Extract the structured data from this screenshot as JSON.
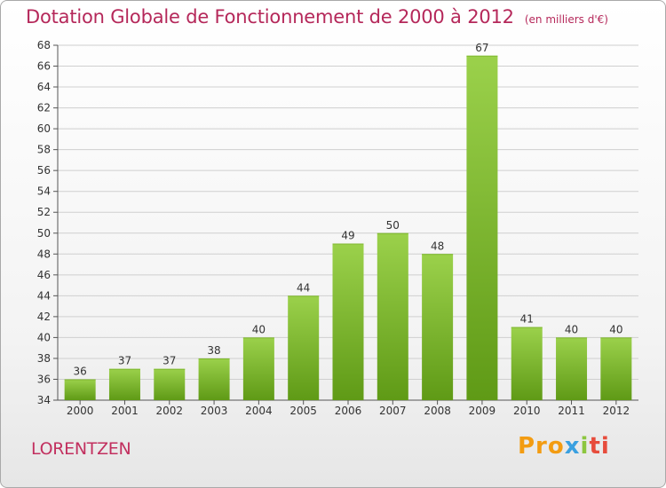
{
  "header": {
    "title": "Dotation Globale de Fonctionnement de 2000 à 2012",
    "unit": "(en milliers d'€)"
  },
  "commune": "LORENTZEN",
  "logo": {
    "parts": [
      "Pro",
      "x",
      "i",
      "ti"
    ]
  },
  "colors": {
    "title": "#b5285a",
    "bar_light": "#9bd14b",
    "bar_dark": "#5f9a16",
    "grid": "#cfcfcf"
  },
  "chart_data": {
    "type": "bar",
    "categories": [
      "2000",
      "2001",
      "2002",
      "2003",
      "2004",
      "2005",
      "2006",
      "2007",
      "2008",
      "2009",
      "2010",
      "2011",
      "2012"
    ],
    "values": [
      36,
      37,
      37,
      38,
      40,
      44,
      49,
      50,
      48,
      67,
      41,
      40,
      40
    ],
    "ylim": [
      34,
      68
    ],
    "yticks": [
      34,
      36,
      38,
      40,
      42,
      44,
      46,
      48,
      50,
      52,
      54,
      56,
      58,
      60,
      62,
      64,
      66,
      68
    ],
    "grid": true,
    "title": "Dotation Globale de Fonctionnement de 2000 à 2012",
    "xlabel": "",
    "ylabel": ""
  }
}
